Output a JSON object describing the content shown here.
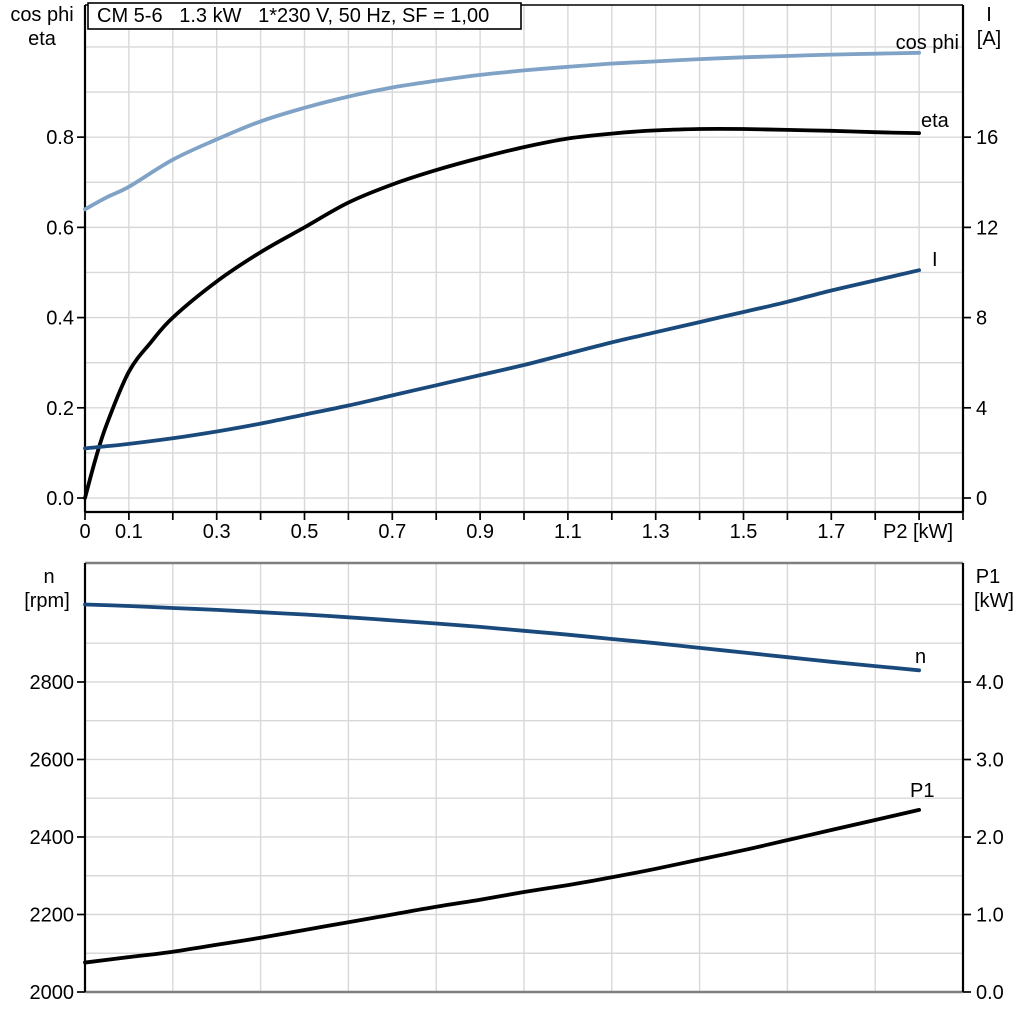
{
  "colors": {
    "light_blue": "#7FA2C6",
    "dark_blue": "#1A4A7C",
    "black": "#000000",
    "grid": "#D8D8D8",
    "frame_gray": "#7F7F7F",
    "background": "#FFFFFF"
  },
  "chart_data": [
    {
      "type": "line",
      "title": "CM 5-6   1.3 kW   1*230 V, 50 Hz, SF = 1,00",
      "xlabel": "P2 [kW]",
      "xlim": [
        0,
        2.0
      ],
      "grid": "on",
      "x_axis": {
        "tick_interval": 0.1,
        "labeled_at": [
          0,
          0.1,
          0.3,
          0.5,
          0.7,
          0.9,
          1.1,
          1.3,
          1.5,
          1.7
        ],
        "labeled_ticks": [
          "0",
          "0.1",
          "0.3",
          "0.5",
          "0.7",
          "0.9",
          "1.1",
          "1.3",
          "1.5",
          "1.7"
        ]
      },
      "left_axis": {
        "title_lines": [
          "cos phi",
          "eta"
        ],
        "tick_values": [
          0.0,
          0.2,
          0.4,
          0.6,
          0.8
        ],
        "tick_labels": [
          "0.0",
          "0.2",
          "0.4",
          "0.6",
          "0.8"
        ],
        "range_shown": [
          -0.031,
          1.093
        ]
      },
      "right_axis": {
        "title_lines": [
          "I",
          "[A]"
        ],
        "tick_values": [
          0,
          4,
          8,
          12,
          16
        ],
        "tick_labels": [
          "0",
          "4",
          "8",
          "12",
          "16"
        ],
        "range_shown": [
          -0.62,
          21.86
        ]
      },
      "series": [
        {
          "name": "cos phi",
          "axis": "left",
          "color_key": "light_blue",
          "x": [
            0,
            0.05,
            0.1,
            0.2,
            0.3,
            0.4,
            0.5,
            0.6,
            0.7,
            0.8,
            0.9,
            1.0,
            1.1,
            1.2,
            1.3,
            1.4,
            1.5,
            1.6,
            1.7,
            1.8,
            1.9
          ],
          "y": [
            0.64,
            0.667,
            0.69,
            0.75,
            0.795,
            0.835,
            0.865,
            0.89,
            0.91,
            0.925,
            0.938,
            0.948,
            0.956,
            0.963,
            0.968,
            0.973,
            0.977,
            0.98,
            0.983,
            0.985,
            0.987
          ]
        },
        {
          "name": "eta",
          "axis": "left",
          "color_key": "black",
          "x": [
            0,
            0.025,
            0.05,
            0.1,
            0.15,
            0.2,
            0.3,
            0.4,
            0.5,
            0.6,
            0.7,
            0.8,
            0.9,
            1.0,
            1.1,
            1.2,
            1.3,
            1.4,
            1.5,
            1.6,
            1.7,
            1.8,
            1.9
          ],
          "y": [
            0,
            0.09,
            0.165,
            0.28,
            0.345,
            0.4,
            0.48,
            0.545,
            0.6,
            0.655,
            0.695,
            0.727,
            0.754,
            0.778,
            0.797,
            0.808,
            0.815,
            0.818,
            0.818,
            0.816,
            0.814,
            0.811,
            0.809
          ]
        },
        {
          "name": "I",
          "axis": "right",
          "color_key": "dark_blue",
          "x": [
            0,
            0.1,
            0.2,
            0.3,
            0.4,
            0.5,
            0.6,
            0.7,
            0.8,
            0.9,
            1.0,
            1.1,
            1.2,
            1.3,
            1.4,
            1.5,
            1.6,
            1.7,
            1.8,
            1.9
          ],
          "y": [
            2.2,
            2.4,
            2.65,
            2.95,
            3.3,
            3.7,
            4.1,
            4.55,
            5.0,
            5.45,
            5.9,
            6.4,
            6.9,
            7.35,
            7.8,
            8.25,
            8.7,
            9.2,
            9.65,
            10.1
          ]
        }
      ]
    },
    {
      "type": "line",
      "title": "",
      "xlabel": "",
      "xlim": [
        0,
        2.0
      ],
      "grid": "on",
      "x_axis": {
        "tick_interval": 0.2,
        "labeled_at": [],
        "labeled_ticks": []
      },
      "left_axis": {
        "title_lines": [
          "n",
          "[rpm]"
        ],
        "tick_values": [
          2000,
          2200,
          2400,
          2600,
          2800
        ],
        "tick_labels": [
          "2000",
          "2200",
          "2400",
          "2600",
          "2800"
        ],
        "range_shown": [
          2000,
          3107
        ]
      },
      "right_axis": {
        "title_lines": [
          "P1",
          "[kW]"
        ],
        "tick_values": [
          0,
          1,
          2,
          3,
          4
        ],
        "tick_labels": [
          "0.0",
          "1.0",
          "2.0",
          "3.0",
          "4.0"
        ],
        "range_shown": [
          0,
          5.536
        ]
      },
      "series": [
        {
          "name": "n",
          "axis": "left",
          "color_key": "dark_blue",
          "x": [
            0,
            0.1,
            0.2,
            0.3,
            0.4,
            0.5,
            0.6,
            0.7,
            0.8,
            0.9,
            1.0,
            1.1,
            1.2,
            1.3,
            1.4,
            1.5,
            1.6,
            1.7,
            1.8,
            1.9
          ],
          "y": [
            3000,
            2996,
            2991,
            2986,
            2980,
            2974,
            2967,
            2959,
            2951,
            2942,
            2932,
            2922,
            2911,
            2900,
            2888,
            2876,
            2864,
            2852,
            2841,
            2830
          ]
        },
        {
          "name": "P1",
          "axis": "right",
          "color_key": "black",
          "x": [
            0,
            0.1,
            0.2,
            0.3,
            0.4,
            0.5,
            0.6,
            0.7,
            0.8,
            0.9,
            1.0,
            1.1,
            1.2,
            1.3,
            1.4,
            1.5,
            1.6,
            1.7,
            1.8,
            1.9
          ],
          "y": [
            0.38,
            0.45,
            0.52,
            0.61,
            0.7,
            0.8,
            0.9,
            1.0,
            1.1,
            1.19,
            1.29,
            1.38,
            1.48,
            1.59,
            1.71,
            1.83,
            1.96,
            2.09,
            2.22,
            2.35
          ]
        }
      ]
    }
  ]
}
